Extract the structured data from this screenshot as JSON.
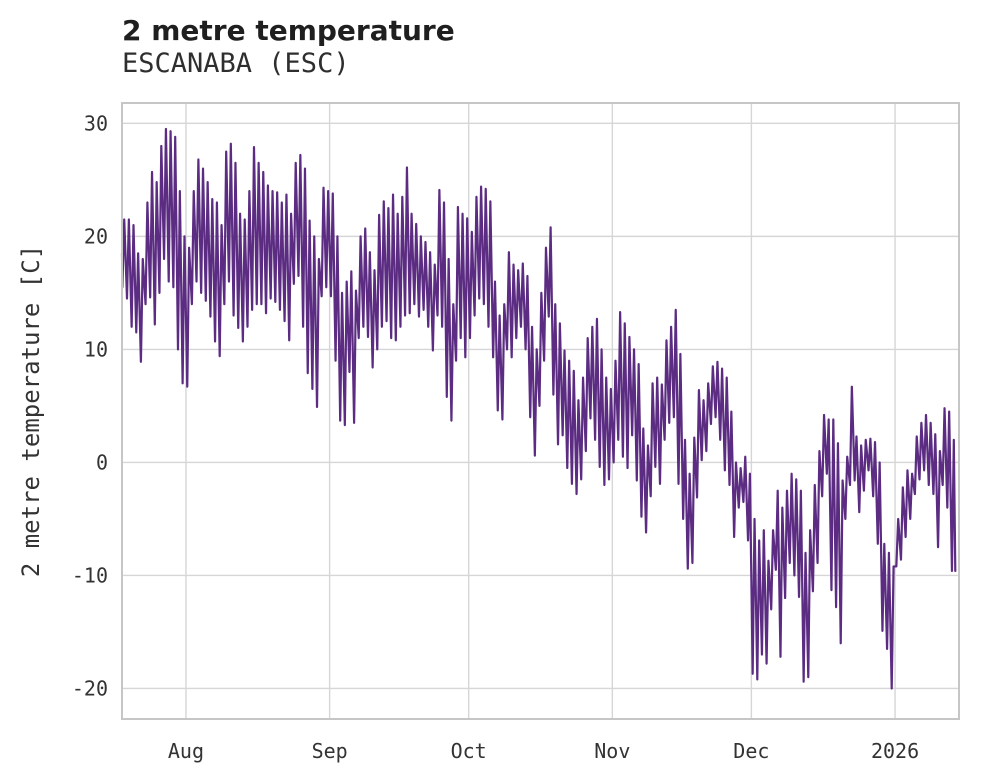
{
  "chart_data": {
    "type": "line",
    "title": "2 metre temperature",
    "subtitle": "ESCANABA (ESC)",
    "ylabel": "2 metre temperature [C]",
    "xlabel": "",
    "legend": null,
    "grid": true,
    "line_color": "#5b2c82",
    "grid_color": "#d6d6d6",
    "frame_color": "#c6c6c6",
    "tick_text_color": "#333333",
    "ylim": [
      -22.7,
      31.8
    ],
    "xlim_days": [
      0.2,
      180.8
    ],
    "x_unit": "days from first sample (mid-July 2025), hourly series shown as daily min/max envelope",
    "y_ticks": [
      30,
      20,
      10,
      0,
      -10,
      -20
    ],
    "x_ticks": [
      {
        "label": "Aug",
        "day": 14
      },
      {
        "label": "Sep",
        "day": 45
      },
      {
        "label": "Oct",
        "day": 75
      },
      {
        "label": "Nov",
        "day": 106
      },
      {
        "label": "Dec",
        "day": 136
      },
      {
        "label": "2026",
        "day": 167
      }
    ],
    "start_point": {
      "day": 0.2,
      "value": 18.5
    },
    "end_point": {
      "day": 180.0,
      "value": -9.6
    },
    "series": [
      {
        "name": "2 metre temperature",
        "sampling": "daily min/max",
        "daily_min": [
          15.5,
          14.5,
          12,
          11.5,
          8.9,
          14,
          14.6,
          12.2,
          15,
          18,
          16,
          15.5,
          10,
          7,
          6.7,
          14,
          16,
          15,
          14.3,
          12.9,
          10.7,
          9.4,
          14,
          16,
          13,
          11.9,
          10.7,
          12,
          13.5,
          14,
          14,
          13.2,
          14.5,
          14.2,
          13.5,
          12.5,
          10.8,
          15.8,
          16.5,
          12,
          7.9,
          6.5,
          4.9,
          14.7,
          15.5,
          14.7,
          9,
          3.7,
          3.3,
          8,
          3.5,
          11,
          12,
          11.1,
          8.4,
          10,
          12,
          12.5,
          11,
          10.8,
          12,
          13,
          13.2,
          14,
          12.9,
          13.5,
          12,
          9.9,
          13,
          12,
          5.8,
          3.7,
          9,
          11,
          9.3,
          11,
          13,
          14.5,
          14,
          12,
          9.3,
          4.6,
          3.8,
          10,
          9.3,
          11,
          12,
          10,
          4,
          0.6,
          5,
          9,
          12.9,
          6,
          1.6,
          2.4,
          -0.5,
          -1.9,
          -2.8,
          -1.5,
          1,
          3.9,
          2,
          -0.4,
          -2,
          -1.5,
          0,
          2,
          0.5,
          -0.5,
          2.4,
          -1.6,
          -4.8,
          -6.2,
          -3,
          -0.4,
          -1.9,
          2,
          3.5,
          4,
          -1.9,
          -5,
          -9.4,
          -8.9,
          -3.1,
          0.2,
          1,
          3.4,
          4,
          2,
          -0.7,
          -2,
          -6.6,
          -4,
          -3.5,
          -6.9,
          -18.7,
          -19.2,
          -17,
          -17.8,
          -13,
          -9.5,
          -17.2,
          -12,
          -8.9,
          -10,
          -11.9,
          -19.4,
          -19,
          -11.4,
          -8.9,
          -3,
          -1,
          -11.3,
          -12.8,
          -16,
          -5,
          -2,
          -1.6,
          -4.4,
          -2.5,
          -0.7,
          -3,
          -7.2,
          -14.9,
          -16.5,
          -20,
          -9.2,
          -8.6,
          -6.6,
          -5,
          -2.8,
          -1.5,
          -0.7,
          -2,
          -2.8,
          -7.5,
          -2,
          -4,
          -9.6
        ],
        "daily_max": [
          21.5,
          21.5,
          21,
          18.5,
          18,
          23,
          25.7,
          24.8,
          28,
          29.5,
          29.3,
          28.8,
          24,
          20,
          19,
          24,
          26.8,
          26,
          24.8,
          23.3,
          23,
          21,
          27.5,
          28.2,
          26.5,
          22,
          21.5,
          24,
          27.9,
          26.5,
          25.7,
          24.5,
          24,
          23.9,
          23,
          23.7,
          22,
          26.5,
          27.2,
          26,
          21.4,
          20,
          18,
          24.3,
          24,
          23.8,
          20,
          15,
          16,
          16.9,
          15.2,
          20,
          20.7,
          18.6,
          17,
          21.9,
          23.1,
          22.5,
          23.7,
          22,
          23.5,
          26.1,
          22,
          21.1,
          20,
          19.5,
          18.6,
          17.5,
          24.1,
          23,
          18,
          14,
          22.6,
          22,
          21.6,
          20.4,
          23.5,
          24.4,
          24.2,
          23.1,
          16,
          13,
          14,
          18.6,
          17.5,
          17,
          17.6,
          16.5,
          12,
          10,
          15,
          19,
          20.8,
          14,
          12.3,
          9.9,
          9,
          8.1,
          5.5,
          7.5,
          11,
          12,
          12.7,
          10,
          7.5,
          6.5,
          9,
          13.3,
          12.3,
          11.1,
          10,
          8.7,
          3,
          1.5,
          7,
          7.5,
          6.9,
          10.8,
          12,
          13.5,
          9.6,
          2,
          -1,
          2.2,
          6.4,
          5.5,
          7,
          8.5,
          8.9,
          8.3,
          7.5,
          4.5,
          0,
          -0.5,
          0.5,
          -1,
          -5,
          -6.9,
          -6,
          -8.7,
          -6,
          -2.5,
          -4,
          -2.5,
          -1,
          -1.5,
          -2.5,
          -8,
          -6,
          -2,
          1,
          4.2,
          3.8,
          3.8,
          1.7,
          -1.6,
          0.5,
          6.7,
          2.3,
          1.5,
          2,
          2.1,
          1.8,
          0,
          -7.2,
          -8,
          -9.2,
          -5,
          -2.2,
          -0.7,
          -1,
          2.3,
          3.5,
          4.2,
          3.5,
          2.5,
          1,
          4.8,
          4.5,
          2
        ]
      }
    ]
  }
}
